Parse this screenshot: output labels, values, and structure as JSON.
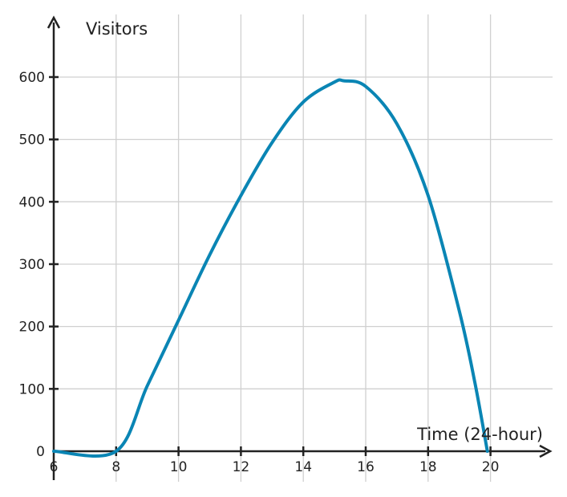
{
  "chart_data": {
    "type": "line",
    "xlabel": "Time (24-hour)",
    "ylabel": "Visitors",
    "xlim": [
      6,
      22
    ],
    "ylim": [
      0,
      600
    ],
    "x_ticks": [
      6,
      8,
      10,
      12,
      14,
      16,
      18,
      20
    ],
    "y_ticks": [
      0,
      100,
      200,
      300,
      400,
      500,
      600
    ],
    "grid": true,
    "colors": {
      "line": "#0a85b4",
      "grid": "#d0d0d0",
      "axis": "#222222"
    },
    "series": [
      {
        "x": [
          6,
          8,
          9,
          10,
          11,
          12,
          13,
          14,
          15,
          15.3,
          16,
          17,
          18,
          19,
          19.5,
          19.9
        ],
        "values": [
          0,
          0,
          105,
          210,
          315,
          410,
          495,
          560,
          592,
          594,
          585,
          525,
          410,
          225,
          110,
          0
        ]
      }
    ]
  }
}
